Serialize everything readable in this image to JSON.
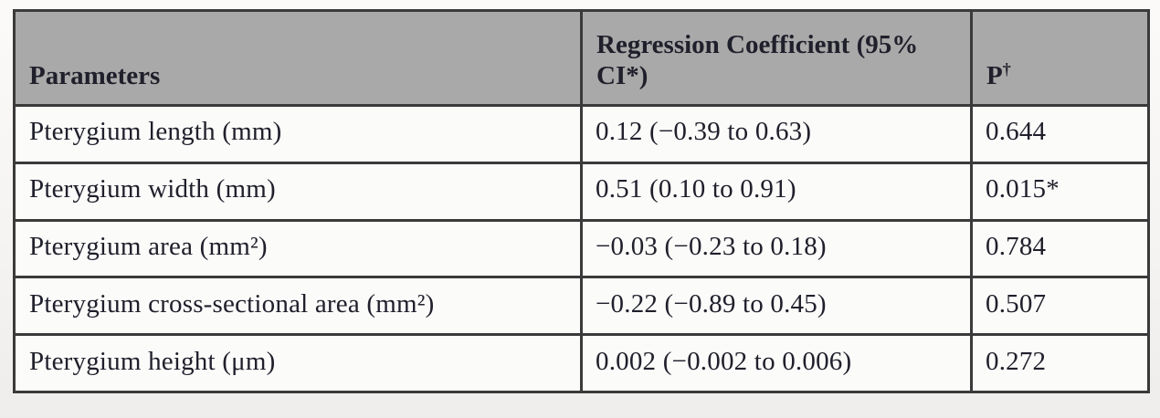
{
  "colors": {
    "header_bg": "#a9a9a9",
    "border": "#3a3a3a",
    "row_bg": "#fbfbfa",
    "page_bg": "#f4f2f0",
    "text": "#20202c"
  },
  "table": {
    "header": {
      "parameters": "Parameters",
      "coefficient": "Regression Coefficient (95% CI*)",
      "p_base": "P",
      "p_sup": "†"
    },
    "rows": [
      {
        "parameter": "Pterygium length (mm)",
        "coefficient": "0.12 (−0.39 to 0.63)",
        "p": "0.644"
      },
      {
        "parameter": "Pterygium width (mm)",
        "coefficient": "0.51 (0.10 to 0.91)",
        "p": "0.015*"
      },
      {
        "parameter": "Pterygium area (mm²)",
        "coefficient": "−0.03 (−0.23 to 0.18)",
        "p": "0.784"
      },
      {
        "parameter": "Pterygium cross-sectional area (mm²)",
        "coefficient": "−0.22 (−0.89 to 0.45)",
        "p": "0.507"
      },
      {
        "parameter": "Pterygium height (μm)",
        "coefficient": "0.002 (−0.002 to 0.006)",
        "p": "0.272"
      }
    ]
  },
  "chart_data": {
    "type": "table",
    "columns": [
      "Parameters",
      "Regression Coefficient (95% CI*)",
      "P†"
    ],
    "rows": [
      [
        "Pterygium length (mm)",
        "0.12 (−0.39 to 0.63)",
        "0.644"
      ],
      [
        "Pterygium width (mm)",
        "0.51 (0.10 to 0.91)",
        "0.015*"
      ],
      [
        "Pterygium area (mm²)",
        "−0.03 (−0.23 to 0.18)",
        "0.784"
      ],
      [
        "Pterygium cross-sectional area (mm²)",
        "−0.22 (−0.89 to 0.45)",
        "0.507"
      ],
      [
        "Pterygium height (μm)",
        "0.002 (−0.002 to 0.006)",
        "0.272"
      ]
    ]
  }
}
